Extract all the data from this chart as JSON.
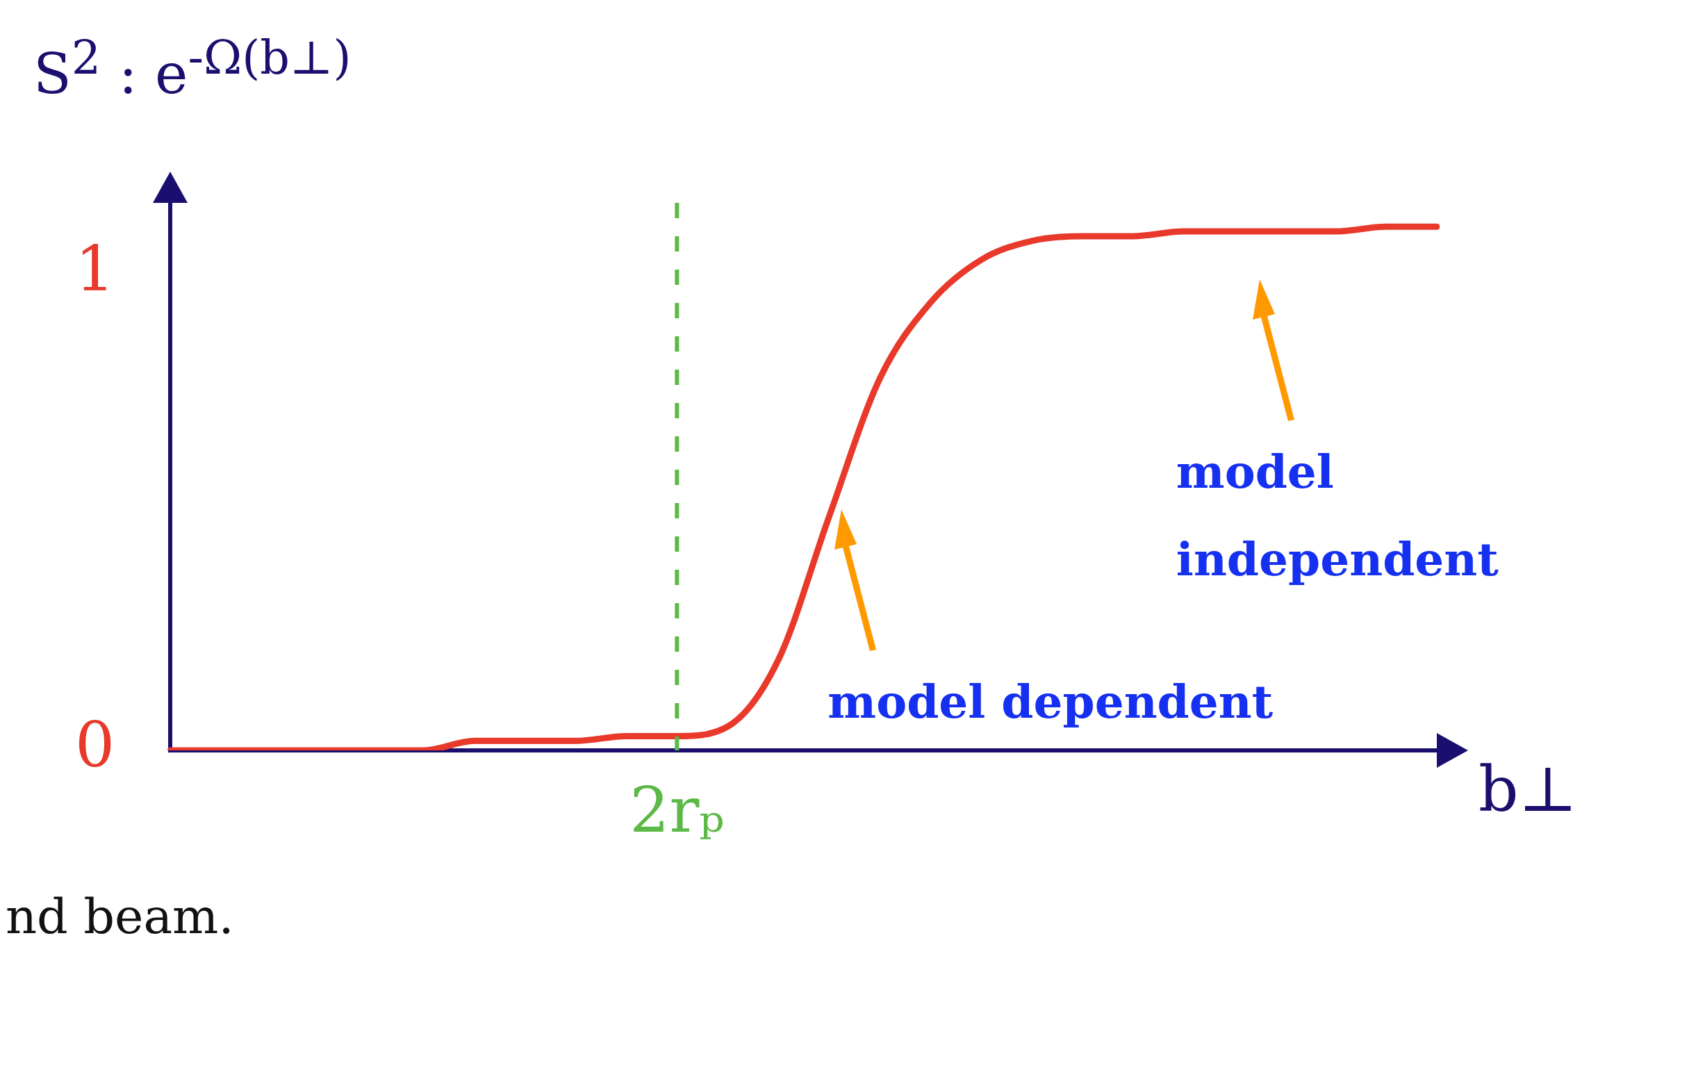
{
  "chart_data": {
    "type": "line",
    "ylabel": "S$^{2}$ : e$^{-Ω(b⊥)}$",
    "xlabel": "b⊥",
    "categories": [
      null,
      null,
      null,
      null,
      null,
      null,
      null,
      null,
      null,
      null,
      "2rₚ",
      null,
      null,
      null,
      null,
      null,
      null,
      null,
      null,
      null,
      null,
      null,
      null,
      null,
      null,
      null
    ],
    "series": [
      {
        "color": "#e8392a",
        "values": [
          0,
          0,
          0,
          0,
          0,
          0,
          0.02,
          0.02,
          0.02,
          0.03,
          0.03,
          0.05,
          0.19,
          0.49,
          0.78,
          0.94,
          1.03,
          1.07,
          1.08,
          1.08,
          1.09,
          1.09,
          1.09,
          1.09,
          1.1,
          1.1
        ]
      }
    ],
    "ylim": [
      0,
      1.15
    ],
    "yticks": [
      0,
      1
    ],
    "ref_lines": [
      {
        "axis": "x",
        "value": "2rₚ",
        "color": "#5cb946",
        "line_style": "dashed"
      }
    ],
    "annotations": [
      "model dependent",
      "model independent",
      "nd beam."
    ],
    "grid": false,
    "legend": false,
    "marker": "none",
    "line_style": "solid"
  }
}
